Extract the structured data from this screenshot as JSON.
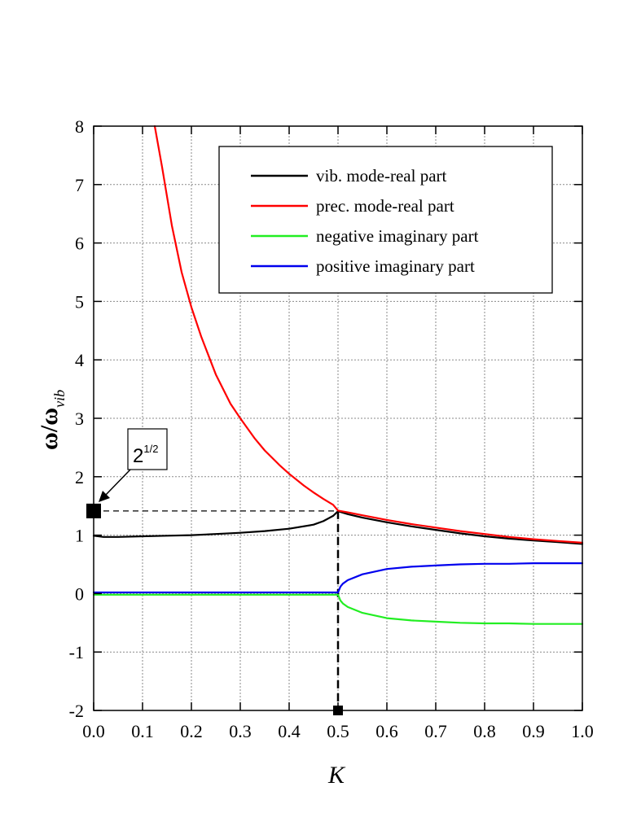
{
  "chart_data": {
    "type": "line",
    "xlabel": "K",
    "ylabel": {
      "main": "ω/ω",
      "sub": "vib"
    },
    "xlim": [
      0.0,
      1.0
    ],
    "ylim": [
      -2,
      8
    ],
    "x_ticks": [
      "0.0",
      "0.1",
      "0.2",
      "0.3",
      "0.4",
      "0.5",
      "0.6",
      "0.7",
      "0.8",
      "0.9",
      "1.0"
    ],
    "y_ticks": [
      "-2",
      "-1",
      "0",
      "1",
      "2",
      "3",
      "4",
      "5",
      "6",
      "7",
      "8"
    ],
    "grid": true,
    "legend_position": "top-right",
    "series": [
      {
        "name": "vib. mode-real part",
        "color": "#000000",
        "x": [
          0.0,
          0.02,
          0.05,
          0.1,
          0.15,
          0.2,
          0.25,
          0.3,
          0.35,
          0.4,
          0.45,
          0.47,
          0.49,
          0.5,
          0.52,
          0.55,
          0.6,
          0.65,
          0.7,
          0.75,
          0.8,
          0.85,
          0.9,
          0.95,
          1.0
        ],
        "y": [
          0.99,
          0.97,
          0.97,
          0.98,
          0.99,
          1.0,
          1.02,
          1.04,
          1.07,
          1.11,
          1.18,
          1.24,
          1.33,
          1.41,
          1.36,
          1.3,
          1.22,
          1.15,
          1.09,
          1.03,
          0.98,
          0.94,
          0.91,
          0.88,
          0.85
        ]
      },
      {
        "name": "prec. mode-real part",
        "color": "#ff0000",
        "x": [
          0.125,
          0.14,
          0.15,
          0.16,
          0.18,
          0.2,
          0.22,
          0.25,
          0.28,
          0.3,
          0.33,
          0.35,
          0.38,
          0.4,
          0.43,
          0.45,
          0.47,
          0.49,
          0.5,
          0.52,
          0.55,
          0.6,
          0.65,
          0.7,
          0.75,
          0.8,
          0.85,
          0.9,
          0.95,
          1.0
        ],
        "y": [
          8.0,
          7.3,
          6.8,
          6.3,
          5.5,
          4.9,
          4.4,
          3.75,
          3.25,
          3.0,
          2.65,
          2.45,
          2.2,
          2.05,
          1.85,
          1.73,
          1.62,
          1.52,
          1.42,
          1.39,
          1.34,
          1.26,
          1.19,
          1.13,
          1.07,
          1.02,
          0.97,
          0.93,
          0.9,
          0.87
        ]
      },
      {
        "name": "negative imaginary part",
        "color": "#22ee22",
        "x": [
          0.0,
          0.1,
          0.2,
          0.3,
          0.4,
          0.49,
          0.5,
          0.505,
          0.51,
          0.52,
          0.55,
          0.6,
          0.65,
          0.7,
          0.75,
          0.8,
          0.85,
          0.9,
          0.95,
          1.0
        ],
        "y": [
          -0.02,
          -0.02,
          -0.02,
          -0.02,
          -0.02,
          -0.02,
          -0.02,
          -0.12,
          -0.17,
          -0.23,
          -0.33,
          -0.42,
          -0.46,
          -0.48,
          -0.5,
          -0.51,
          -0.51,
          -0.52,
          -0.52,
          -0.52
        ]
      },
      {
        "name": "positive imaginary part",
        "color": "#0000ee",
        "x": [
          0.0,
          0.1,
          0.2,
          0.3,
          0.4,
          0.49,
          0.5,
          0.505,
          0.51,
          0.52,
          0.55,
          0.6,
          0.65,
          0.7,
          0.75,
          0.8,
          0.85,
          0.9,
          0.95,
          1.0
        ],
        "y": [
          0.02,
          0.02,
          0.02,
          0.02,
          0.02,
          0.02,
          0.02,
          0.12,
          0.17,
          0.23,
          0.33,
          0.42,
          0.46,
          0.48,
          0.5,
          0.51,
          0.51,
          0.52,
          0.52,
          0.52
        ]
      }
    ],
    "annotations": [
      {
        "label_base": "2",
        "label_exp": "1/2",
        "x": 0.0,
        "y": 1.414
      },
      {
        "label_base": "",
        "label_exp": "",
        "x": 0.5,
        "y": -2
      }
    ]
  }
}
